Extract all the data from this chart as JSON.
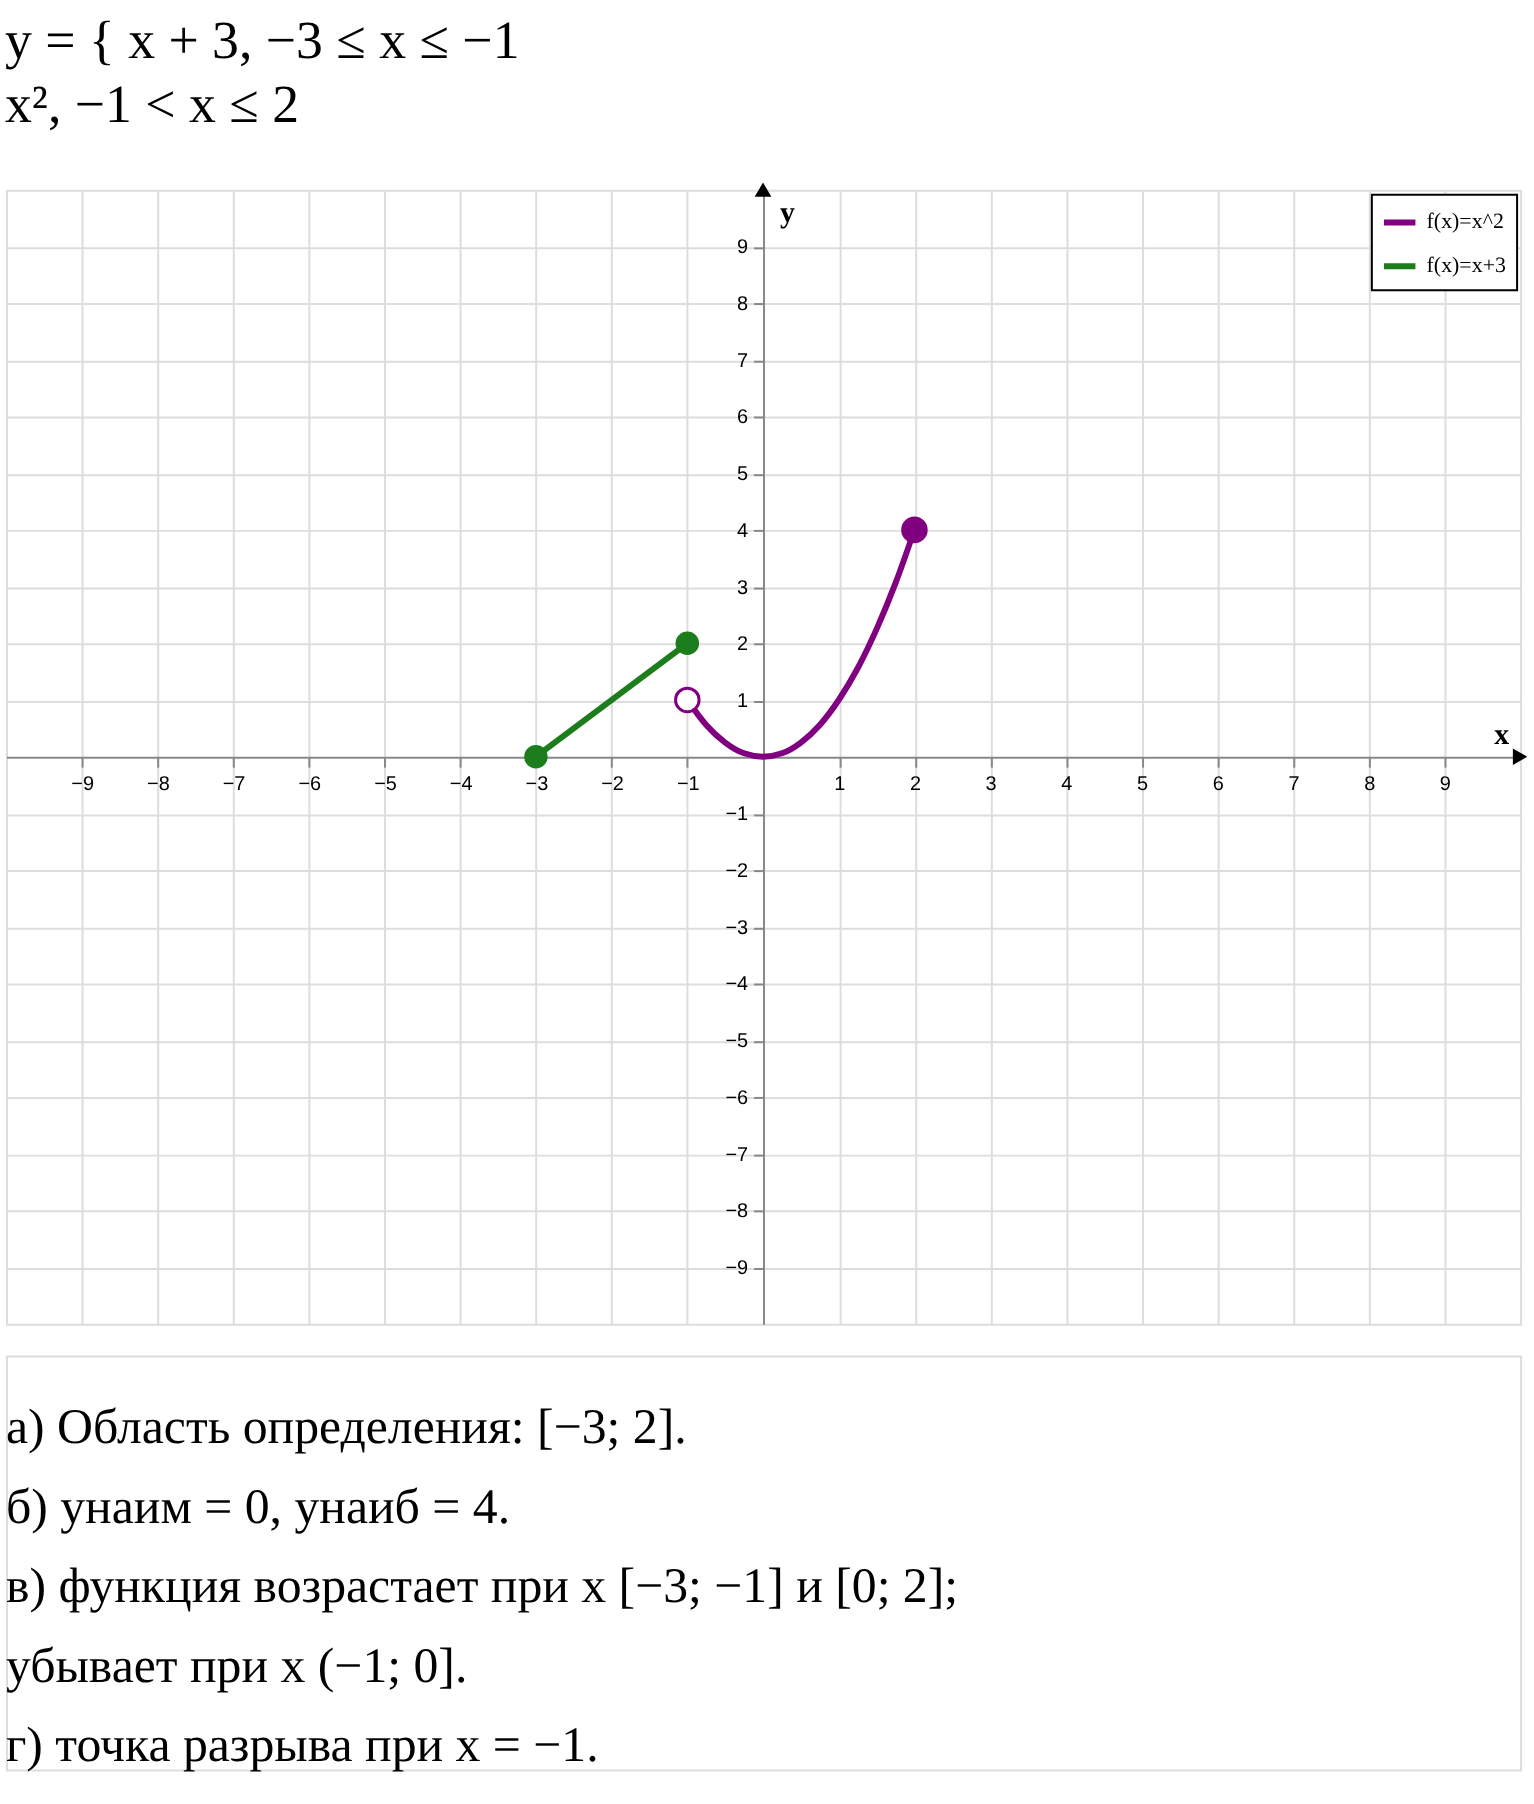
{
  "chart_data": {
    "type": "line",
    "title": "y = { x + 3,  −3 ≤ x ≤ −1\nx²,  −1 < x ≤ 2",
    "xlabel": "x",
    "ylabel": "y",
    "xlim": [
      -10,
      10
    ],
    "ylim": [
      -10,
      10
    ],
    "xticks": [
      -9,
      -8,
      -7,
      -6,
      -5,
      -4,
      -3,
      -2,
      -1,
      1,
      2,
      3,
      4,
      5,
      6,
      7,
      8,
      9
    ],
    "yticks": [
      -9,
      -8,
      -7,
      -6,
      -5,
      -4,
      -3,
      -2,
      -1,
      1,
      2,
      3,
      4,
      5,
      6,
      7,
      8,
      9
    ],
    "grid": true,
    "legend": "top right",
    "series": [
      {
        "name": "f(x)=x^2",
        "color": "#800080",
        "x": [
          -1,
          -0.75,
          -0.5,
          -0.25,
          0,
          0.25,
          0.5,
          0.75,
          1,
          1.25,
          1.5,
          1.75,
          2
        ],
        "values": [
          1,
          0.56,
          0.25,
          0.06,
          0,
          0.06,
          0.25,
          0.56,
          1,
          1.56,
          2.25,
          3.06,
          4
        ]
      },
      {
        "name": "f(x)=x+3",
        "color": "#1b7d1b",
        "x": [
          -3,
          -1
        ],
        "values": [
          0,
          2
        ],
        "marker": "circle"
      },
      {
        "type": "scatter",
        "color": "#800080",
        "colors": [
          "#800080",
          "#ffffff"
        ],
        "x": [
          2,
          -1
        ],
        "values": [
          4,
          1
        ],
        "marker": "circle"
      }
    ],
    "annotations": [
      "а) Область определения: [−3; 2].",
      "б) yнаим = 0,   yнаиб = 4.",
      "в) функция возрастает при x [−3; −1] и [0; 2];",
      "убывает при x (−1; 0].",
      "г) точка разрыва при x = −1."
    ]
  }
}
